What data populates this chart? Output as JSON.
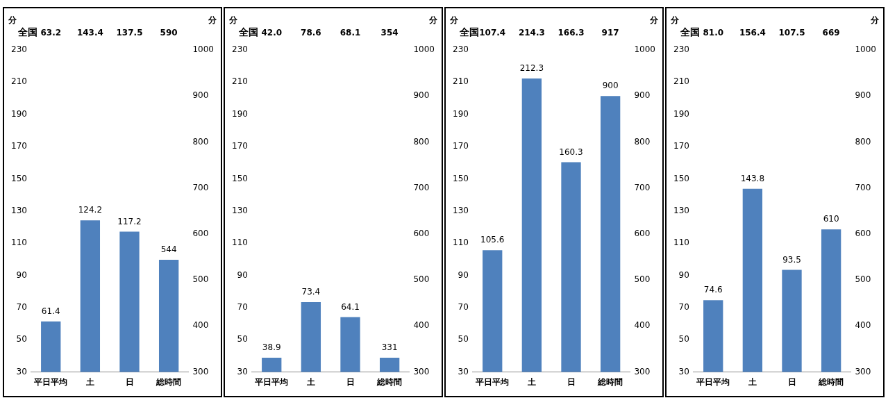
{
  "chart_data": [
    {
      "type": "bar",
      "categories": [
        "平日平均",
        "土",
        "日",
        "総時間"
      ],
      "series": [
        {
          "color": "#4f81bd",
          "values": [
            61.4,
            124.2,
            117.2,
            null
          ]
        },
        {
          "color": "#4f81bd",
          "values": [
            null,
            null,
            null,
            544
          ],
          "axis": "y2"
        }
      ],
      "ylabel": "分",
      "y2label": "分",
      "ylim": [
        30,
        230
      ],
      "yticks": [
        30,
        50,
        70,
        90,
        110,
        130,
        150,
        170,
        190,
        210,
        230
      ],
      "y2lim": [
        300,
        1000
      ],
      "y2ticks": [
        300,
        400,
        500,
        600,
        700,
        800,
        900,
        1000
      ],
      "data_labels": true,
      "grid": false,
      "legend": false,
      "annotations": [
        "全国",
        "63.2",
        "143.4",
        "137.5",
        "590"
      ]
    },
    {
      "type": "bar",
      "categories": [
        "平日平均",
        "土",
        "日",
        "総時間"
      ],
      "series": [
        {
          "color": "#4f81bd",
          "values": [
            38.9,
            73.4,
            64.1,
            null
          ]
        },
        {
          "color": "#4f81bd",
          "values": [
            null,
            null,
            null,
            331
          ],
          "axis": "y2"
        }
      ],
      "ylabel": "分",
      "y2label": "分",
      "ylim": [
        30,
        230
      ],
      "yticks": [
        30,
        50,
        70,
        90,
        110,
        130,
        150,
        170,
        190,
        210,
        230
      ],
      "y2lim": [
        300,
        1000
      ],
      "y2ticks": [
        300,
        400,
        500,
        600,
        700,
        800,
        900,
        1000
      ],
      "data_labels": true,
      "grid": false,
      "legend": false,
      "annotations": [
        "全国",
        "42.0",
        "78.6",
        "68.1",
        "354"
      ]
    },
    {
      "type": "bar",
      "categories": [
        "平日平均",
        "土",
        "日",
        "総時間"
      ],
      "series": [
        {
          "color": "#4f81bd",
          "values": [
            105.6,
            212.3,
            160.3,
            null
          ]
        },
        {
          "color": "#4f81bd",
          "values": [
            null,
            null,
            null,
            900
          ],
          "axis": "y2"
        }
      ],
      "ylabel": "分",
      "y2label": "分",
      "ylim": [
        30,
        230
      ],
      "yticks": [
        30,
        50,
        70,
        90,
        110,
        130,
        150,
        170,
        190,
        210,
        230
      ],
      "y2lim": [
        300,
        1000
      ],
      "y2ticks": [
        300,
        400,
        500,
        600,
        700,
        800,
        900,
        1000
      ],
      "data_labels": true,
      "grid": false,
      "legend": false,
      "annotations": [
        "全国",
        "107.4",
        "214.3",
        "166.3",
        "917"
      ]
    },
    {
      "type": "bar",
      "categories": [
        "平日平均",
        "土",
        "日",
        "総時間"
      ],
      "series": [
        {
          "color": "#4f81bd",
          "values": [
            74.6,
            143.8,
            93.5,
            null
          ]
        },
        {
          "color": "#4f81bd",
          "values": [
            null,
            null,
            null,
            610
          ],
          "axis": "y2"
        }
      ],
      "ylabel": "分",
      "y2label": "分",
      "ylim": [
        30,
        230
      ],
      "yticks": [
        30,
        50,
        70,
        90,
        110,
        130,
        150,
        170,
        190,
        210,
        230
      ],
      "y2lim": [
        300,
        1000
      ],
      "y2ticks": [
        300,
        400,
        500,
        600,
        700,
        800,
        900,
        1000
      ],
      "data_labels": true,
      "grid": false,
      "legend": false,
      "annotations": [
        "全国",
        "81.0",
        "156.4",
        "107.5",
        "669"
      ]
    }
  ]
}
